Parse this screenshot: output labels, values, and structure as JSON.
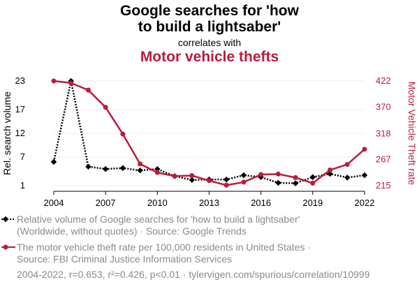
{
  "title_line1": "Google searches for 'how",
  "title_line2": "to build a lightsaber'",
  "subtitle": "correlates with",
  "title_red": "Motor vehicle thefts",
  "legend": {
    "series1_line1": "Relative volume of Google searches for 'how to build a lightsaber'",
    "series1_line2": "(Worldwide, without quotes) · Source: Google Trends",
    "series2_line1": "The motor vehicle theft rate per 100,000 residents in United States ·",
    "series2_line2": "Source: FBI Criminal Justice Information Services"
  },
  "footer": "2004-2022, r=0.653, r²=0.426, p<0.01 · tylervigen.com/spurious/correlation/10999",
  "colors": {
    "black": "#000000",
    "red": "#b91c3c",
    "grid": "#eeeeee"
  },
  "chart_data": {
    "type": "line",
    "x": [
      2004,
      2005,
      2006,
      2007,
      2008,
      2009,
      2010,
      2011,
      2012,
      2013,
      2014,
      2015,
      2016,
      2017,
      2018,
      2019,
      2020,
      2021,
      2022
    ],
    "xticks": [
      "2004",
      "2007",
      "2010",
      "2013",
      "2016",
      "2019",
      "2022"
    ],
    "xlim": [
      2004,
      2022
    ],
    "ylabel_left": "Rel. search volume",
    "ylabel_right": "Motor Vehicle Theft rate",
    "yticks_left": [
      "1",
      "7",
      "12",
      "17",
      "23"
    ],
    "yticks_right": [
      "215",
      "267",
      "318",
      "370",
      "422"
    ],
    "ylim_left": [
      1,
      23
    ],
    "ylim_right": [
      215,
      422
    ],
    "grid": true,
    "series": [
      {
        "values": [
          6,
          23,
          5,
          4.5,
          4.7,
          4.2,
          4.5,
          3,
          2.2,
          2.3,
          2.3,
          3.2,
          2.8,
          1.6,
          1.5,
          2.8,
          3.5,
          2.7,
          3.2
        ],
        "axis": "left",
        "style": "dotted",
        "color": "#000000"
      },
      {
        "values": [
          422,
          418,
          404,
          370,
          317,
          258,
          241,
          234,
          235,
          225,
          216,
          222,
          237,
          238,
          231,
          220,
          246,
          257,
          287
        ],
        "axis": "right",
        "style": "solid",
        "color": "#b91c3c"
      }
    ]
  }
}
